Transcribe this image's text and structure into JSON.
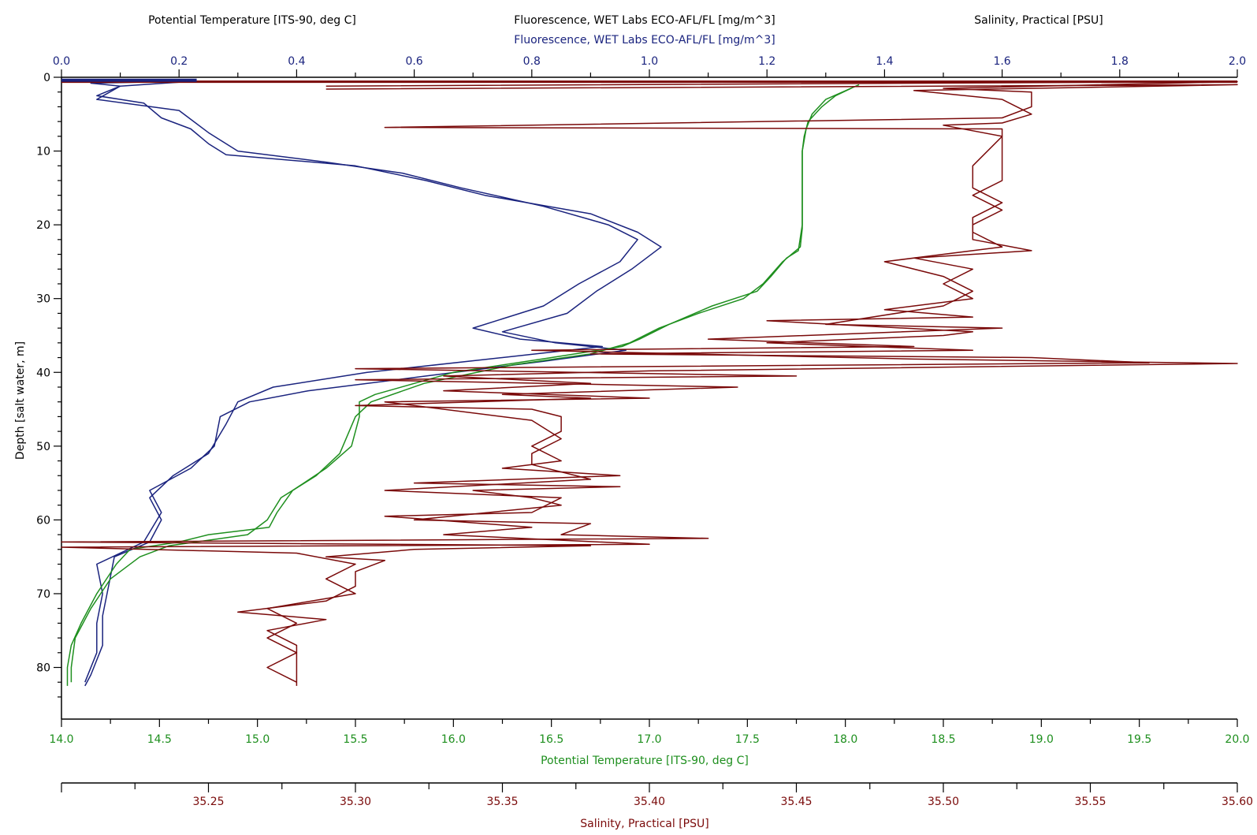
{
  "header": {
    "temp_title": "Potential Temperature [ITS-90, deg C]",
    "fluor_title": "Fluorescence, WET Labs ECO-AFL/FL [mg/m^3]",
    "salinity_title": "Salinity, Practical [PSU]",
    "fluor_axis_label": "Fluorescence, WET Labs ECO-AFL/FL [mg/m^3]"
  },
  "colors": {
    "fluorescence": "#1a237e",
    "temperature": "#1e8f1e",
    "salinity": "#7a0a0a",
    "axis": "#000000"
  },
  "chart_data": {
    "type": "line",
    "ylabel": "Depth [salt water, m]",
    "y_inverted": true,
    "ylim": [
      0,
      87
    ],
    "y_ticks": [
      "0",
      "10",
      "20",
      "30",
      "40",
      "50",
      "60",
      "70",
      "80"
    ],
    "axes": {
      "fluorescence": {
        "position": "top",
        "label": "Fluorescence, WET Labs ECO-AFL/FL [mg/m^3]",
        "range": [
          0,
          2
        ],
        "ticks": [
          "0.0",
          "0.2",
          "0.4",
          "0.6",
          "0.8",
          "1.0",
          "1.2",
          "1.4",
          "1.6",
          "1.8",
          "2.0"
        ]
      },
      "temperature": {
        "position": "bottom",
        "label": "Potential Temperature [ITS-90, deg C]",
        "range": [
          14,
          20
        ],
        "ticks": [
          "14.0",
          "14.5",
          "15.0",
          "15.5",
          "16.0",
          "16.5",
          "17.0",
          "17.5",
          "18.0",
          "18.5",
          "19.0",
          "19.5",
          "20.0"
        ]
      },
      "salinity": {
        "position": "bottom-2",
        "label": "Salinity, Practical [PSU]",
        "range": [
          35.2,
          35.6
        ],
        "ticks": [
          "35.25",
          "35.30",
          "35.35",
          "35.40",
          "35.45",
          "35.50",
          "35.55",
          "35.60"
        ]
      }
    },
    "series": [
      {
        "key": "fluorescence",
        "axis": "fluorescence",
        "profiles": [
          [
            [
              0.23,
              0.5
            ],
            [
              0.05,
              0.8
            ],
            [
              0.1,
              1.2
            ],
            [
              0.06,
              2.5
            ],
            [
              0.14,
              3.5
            ],
            [
              0.17,
              5.5
            ],
            [
              0.22,
              7
            ],
            [
              0.25,
              9
            ],
            [
              0.28,
              10.5
            ],
            [
              0.5,
              12
            ],
            [
              0.62,
              14
            ],
            [
              0.72,
              16
            ],
            [
              0.9,
              18.5
            ],
            [
              0.98,
              21
            ],
            [
              1.02,
              23
            ],
            [
              0.97,
              26
            ],
            [
              0.91,
              29
            ],
            [
              0.86,
              32
            ],
            [
              0.75,
              34.5
            ],
            [
              0.84,
              36
            ],
            [
              0.96,
              37
            ],
            [
              0.82,
              38.5
            ],
            [
              0.62,
              40.5
            ],
            [
              0.42,
              42.5
            ],
            [
              0.32,
              44
            ],
            [
              0.27,
              46
            ],
            [
              0.26,
              50
            ],
            [
              0.22,
              53
            ],
            [
              0.15,
              56
            ],
            [
              0.17,
              59
            ],
            [
              0.14,
              63
            ],
            [
              0.06,
              66
            ],
            [
              0.07,
              70
            ],
            [
              0.06,
              74
            ],
            [
              0.06,
              78
            ],
            [
              0.04,
              82
            ]
          ],
          [
            [
              0.23,
              0.5
            ],
            [
              0.1,
              1.2
            ],
            [
              0.06,
              3
            ],
            [
              0.2,
              4.5
            ],
            [
              0.25,
              7.5
            ],
            [
              0.3,
              10
            ],
            [
              0.45,
              11.5
            ],
            [
              0.58,
              13
            ],
            [
              0.68,
              15
            ],
            [
              0.82,
              17.5
            ],
            [
              0.93,
              20
            ],
            [
              0.98,
              22
            ],
            [
              0.95,
              25
            ],
            [
              0.88,
              28
            ],
            [
              0.82,
              31
            ],
            [
              0.7,
              34
            ],
            [
              0.78,
              35.5
            ],
            [
              0.92,
              36.5
            ],
            [
              0.75,
              38
            ],
            [
              0.52,
              40
            ],
            [
              0.36,
              42
            ],
            [
              0.3,
              44
            ],
            [
              0.28,
              47
            ],
            [
              0.25,
              51
            ],
            [
              0.19,
              54
            ],
            [
              0.15,
              57
            ],
            [
              0.17,
              60
            ],
            [
              0.15,
              63
            ],
            [
              0.09,
              65
            ],
            [
              0.08,
              69
            ],
            [
              0.07,
              73
            ],
            [
              0.07,
              77
            ],
            [
              0.05,
              81
            ],
            [
              0.04,
              82.5
            ]
          ]
        ]
      },
      {
        "key": "temperature",
        "axis": "temperature",
        "profiles": [
          [
            [
              18.07,
              1
            ],
            [
              17.9,
              3
            ],
            [
              17.83,
              5
            ],
            [
              17.8,
              7
            ],
            [
              17.78,
              10
            ],
            [
              17.78,
              20
            ],
            [
              17.76,
              23.5
            ],
            [
              17.7,
              24.5
            ],
            [
              17.62,
              27
            ],
            [
              17.55,
              29
            ],
            [
              17.32,
              31
            ],
            [
              17.1,
              33.5
            ],
            [
              16.95,
              35.5
            ],
            [
              16.86,
              36.5
            ],
            [
              16.5,
              38
            ],
            [
              16.0,
              40
            ],
            [
              15.6,
              43
            ],
            [
              15.52,
              44
            ],
            [
              15.52,
              46
            ],
            [
              15.48,
              50
            ],
            [
              15.35,
              53
            ],
            [
              15.18,
              56
            ],
            [
              15.1,
              59
            ],
            [
              15.06,
              61
            ],
            [
              14.75,
              62
            ],
            [
              14.6,
              63
            ],
            [
              14.35,
              64
            ],
            [
              14.28,
              66
            ],
            [
              14.18,
              70
            ],
            [
              14.1,
              74
            ],
            [
              14.05,
              77
            ],
            [
              14.03,
              80
            ],
            [
              14.03,
              82.5
            ]
          ],
          [
            [
              18.03,
              1.5
            ],
            [
              17.95,
              2.5
            ],
            [
              17.88,
              4
            ],
            [
              17.81,
              6
            ],
            [
              17.79,
              8
            ],
            [
              17.78,
              10
            ],
            [
              17.78,
              20.5
            ],
            [
              17.77,
              23
            ],
            [
              17.68,
              25
            ],
            [
              17.58,
              28
            ],
            [
              17.48,
              30
            ],
            [
              17.25,
              32
            ],
            [
              17.05,
              34
            ],
            [
              16.9,
              36
            ],
            [
              16.7,
              37.5
            ],
            [
              16.3,
              39
            ],
            [
              15.85,
              41.5
            ],
            [
              15.58,
              44
            ],
            [
              15.5,
              46
            ],
            [
              15.42,
              51
            ],
            [
              15.3,
              54
            ],
            [
              15.12,
              57
            ],
            [
              15.05,
              60
            ],
            [
              14.95,
              62
            ],
            [
              14.55,
              63.5
            ],
            [
              14.4,
              65
            ],
            [
              14.25,
              68
            ],
            [
              14.15,
              72
            ],
            [
              14.07,
              76
            ],
            [
              14.05,
              80
            ],
            [
              14.05,
              82
            ]
          ]
        ]
      },
      {
        "key": "salinity",
        "axis": "salinity",
        "profiles": [
          [
            [
              35.29,
              1.2
            ],
            [
              35.6,
              0.6
            ],
            [
              35.5,
              1.5
            ],
            [
              35.53,
              2
            ],
            [
              35.53,
              4
            ],
            [
              35.52,
              5.5
            ],
            [
              35.31,
              6.8
            ],
            [
              35.52,
              7
            ],
            [
              35.52,
              10
            ],
            [
              35.52,
              14
            ],
            [
              35.51,
              16
            ],
            [
              35.52,
              18
            ],
            [
              35.51,
              20
            ],
            [
              35.51,
              22
            ],
            [
              35.53,
              23.5
            ],
            [
              35.49,
              24.5
            ],
            [
              35.51,
              26
            ],
            [
              35.5,
              28
            ],
            [
              35.51,
              30
            ],
            [
              35.48,
              31.5
            ],
            [
              35.51,
              32.5
            ],
            [
              35.44,
              33
            ],
            [
              35.51,
              34.5
            ],
            [
              35.5,
              35
            ],
            [
              35.44,
              36
            ],
            [
              35.51,
              37
            ],
            [
              35.38,
              37.5
            ],
            [
              35.53,
              38
            ],
            [
              35.57,
              38.7
            ],
            [
              35.3,
              39.5
            ],
            [
              35.45,
              40.5
            ],
            [
              35.3,
              41
            ],
            [
              35.43,
              42
            ],
            [
              35.35,
              43
            ],
            [
              35.38,
              43.5
            ],
            [
              35.3,
              44.5
            ],
            [
              35.36,
              45
            ],
            [
              35.37,
              46
            ],
            [
              35.37,
              48
            ],
            [
              35.36,
              50
            ],
            [
              35.37,
              52
            ],
            [
              35.35,
              53
            ],
            [
              35.39,
              54
            ],
            [
              35.32,
              55
            ],
            [
              35.39,
              55.5
            ],
            [
              35.34,
              56
            ],
            [
              35.36,
              57
            ],
            [
              35.37,
              58
            ],
            [
              35.32,
              60
            ],
            [
              35.38,
              60.5
            ],
            [
              35.37,
              62
            ],
            [
              35.42,
              62.5
            ],
            [
              35.2,
              63
            ],
            [
              35.38,
              63.5
            ],
            [
              35.32,
              64
            ],
            [
              35.29,
              65
            ],
            [
              35.31,
              65.5
            ],
            [
              35.3,
              67
            ],
            [
              35.3,
              69
            ],
            [
              35.29,
              71
            ],
            [
              35.26,
              72.5
            ],
            [
              35.29,
              73.5
            ],
            [
              35.27,
              75
            ],
            [
              35.28,
              77
            ],
            [
              35.28,
              79
            ],
            [
              35.28,
              81
            ],
            [
              35.28,
              82.5
            ]
          ],
          [
            [
              35.29,
              1.6
            ],
            [
              35.6,
              1.0
            ],
            [
              35.49,
              1.8
            ],
            [
              35.52,
              3
            ],
            [
              35.53,
              5
            ],
            [
              35.52,
              6.2
            ],
            [
              35.5,
              6.5
            ],
            [
              35.52,
              8
            ],
            [
              35.51,
              12
            ],
            [
              35.51,
              15
            ],
            [
              35.52,
              17
            ],
            [
              35.51,
              19
            ],
            [
              35.51,
              21
            ],
            [
              35.52,
              23
            ],
            [
              35.48,
              25
            ],
            [
              35.5,
              27
            ],
            [
              35.51,
              29
            ],
            [
              35.5,
              31
            ],
            [
              35.46,
              33.5
            ],
            [
              35.52,
              34
            ],
            [
              35.42,
              35.5
            ],
            [
              35.49,
              36.5
            ],
            [
              35.36,
              37
            ],
            [
              35.49,
              38.2
            ],
            [
              35.6,
              38.8
            ],
            [
              35.4,
              39.8
            ],
            [
              35.33,
              40.5
            ],
            [
              35.38,
              41.5
            ],
            [
              35.33,
              42.5
            ],
            [
              35.4,
              43.5
            ],
            [
              35.31,
              44
            ],
            [
              35.36,
              46.5
            ],
            [
              35.37,
              49
            ],
            [
              35.36,
              51
            ],
            [
              35.36,
              52.5
            ],
            [
              35.38,
              54.5
            ],
            [
              35.31,
              56
            ],
            [
              35.37,
              57
            ],
            [
              35.36,
              59
            ],
            [
              35.31,
              59.5
            ],
            [
              35.36,
              61
            ],
            [
              35.33,
              62
            ],
            [
              35.4,
              63.3
            ],
            [
              35.2,
              63.7
            ],
            [
              35.28,
              64.5
            ],
            [
              35.3,
              66
            ],
            [
              35.29,
              68
            ],
            [
              35.3,
              70
            ],
            [
              35.27,
              72
            ],
            [
              35.28,
              74
            ],
            [
              35.27,
              76
            ],
            [
              35.28,
              78
            ],
            [
              35.27,
              80
            ],
            [
              35.28,
              82
            ]
          ]
        ]
      }
    ]
  }
}
